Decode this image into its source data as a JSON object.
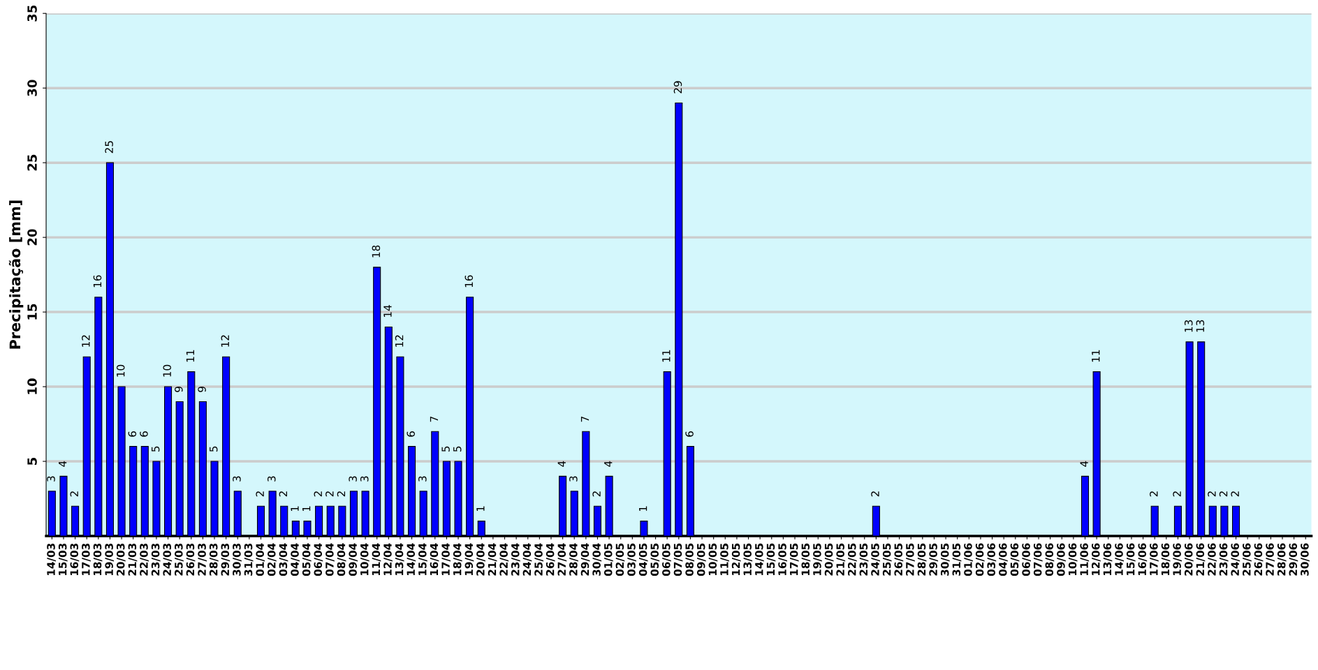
{
  "chart_data": {
    "type": "bar",
    "ylabel": "Precipitação [mm]",
    "categories": [
      "14/03",
      "15/03",
      "16/03",
      "17/03",
      "18/03",
      "19/03",
      "20/03",
      "21/03",
      "22/03",
      "23/03",
      "24/03",
      "25/03",
      "26/03",
      "27/03",
      "28/03",
      "29/03",
      "30/03",
      "31/03",
      "01/04",
      "02/04",
      "03/04",
      "04/04",
      "05/04",
      "06/04",
      "07/04",
      "08/04",
      "09/04",
      "10/04",
      "11/04",
      "12/04",
      "13/04",
      "14/04",
      "15/04",
      "16/04",
      "17/04",
      "18/04",
      "19/04",
      "20/04",
      "21/04",
      "22/04",
      "23/04",
      "24/04",
      "25/04",
      "26/04",
      "27/04",
      "28/04",
      "29/04",
      "30/04",
      "01/05",
      "02/05",
      "03/05",
      "04/05",
      "05/05",
      "06/05",
      "07/05",
      "08/05",
      "09/05",
      "10/05",
      "11/05",
      "12/05",
      "13/05",
      "14/05",
      "15/05",
      "16/05",
      "17/05",
      "18/05",
      "19/05",
      "20/05",
      "21/05",
      "22/05",
      "23/05",
      "24/05",
      "25/05",
      "26/05",
      "27/05",
      "28/05",
      "29/05",
      "30/05",
      "31/05",
      "01/06",
      "02/06",
      "03/06",
      "04/06",
      "05/06",
      "06/06",
      "07/06",
      "08/06",
      "09/06",
      "10/06",
      "11/06",
      "12/06",
      "13/06",
      "14/06",
      "15/06",
      "16/06",
      "17/06",
      "18/06",
      "19/06",
      "20/06",
      "21/06",
      "22/06",
      "23/06",
      "24/06",
      "25/06",
      "26/06",
      "27/06",
      "28/06",
      "29/06",
      "30/06"
    ],
    "series": [
      {
        "color": "#0000ff",
        "values": [
          3,
          4,
          2,
          12,
          16,
          25,
          10,
          6,
          6,
          5,
          10,
          9,
          11,
          9,
          5,
          12,
          3,
          null,
          2,
          3,
          2,
          1,
          1,
          2,
          2,
          2,
          3,
          3,
          18,
          14,
          12,
          6,
          3,
          7,
          5,
          5,
          16,
          1,
          null,
          null,
          null,
          null,
          null,
          null,
          4,
          3,
          7,
          2,
          4,
          null,
          null,
          1,
          null,
          11,
          29,
          6,
          null,
          null,
          null,
          null,
          null,
          null,
          null,
          null,
          null,
          null,
          null,
          null,
          null,
          null,
          null,
          2,
          null,
          null,
          null,
          null,
          null,
          null,
          null,
          null,
          null,
          null,
          null,
          null,
          null,
          null,
          null,
          null,
          null,
          4,
          11,
          null,
          null,
          null,
          null,
          2,
          null,
          2,
          13,
          13,
          2,
          2,
          2,
          null,
          null,
          null,
          null,
          null,
          null
        ]
      }
    ],
    "ylim": [
      0,
      35
    ],
    "yticks": [
      5,
      10,
      15,
      20,
      25,
      30,
      35
    ],
    "grid": "y",
    "data_labels": true
  }
}
